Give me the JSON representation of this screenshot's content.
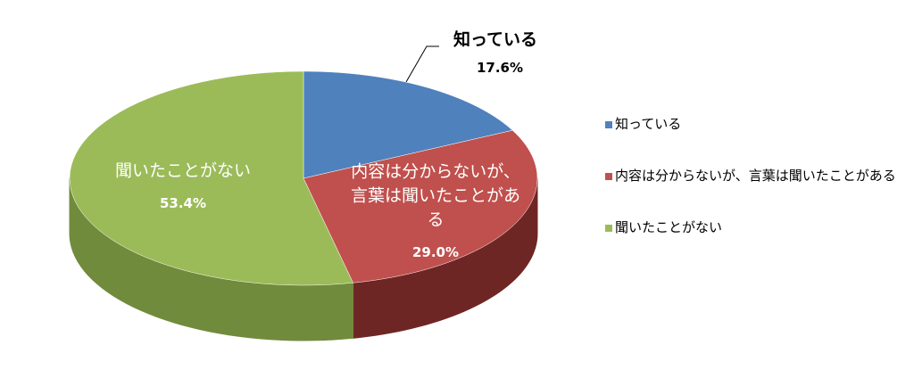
{
  "chart_data": {
    "type": "pie3d",
    "categories": [
      "知っている",
      "内容は分からないが、言葉は聞いたことがある",
      "聞いたことがない"
    ],
    "values": [
      17.6,
      29.0,
      53.4
    ],
    "value_labels": [
      "17.6%",
      "29.0%",
      "53.4%"
    ],
    "colors": [
      "#4f81bd",
      "#c0504d",
      "#9bbb59"
    ],
    "side_colors": [
      "#3b6190",
      "#6e2624",
      "#718b3c"
    ],
    "legend": "right"
  }
}
